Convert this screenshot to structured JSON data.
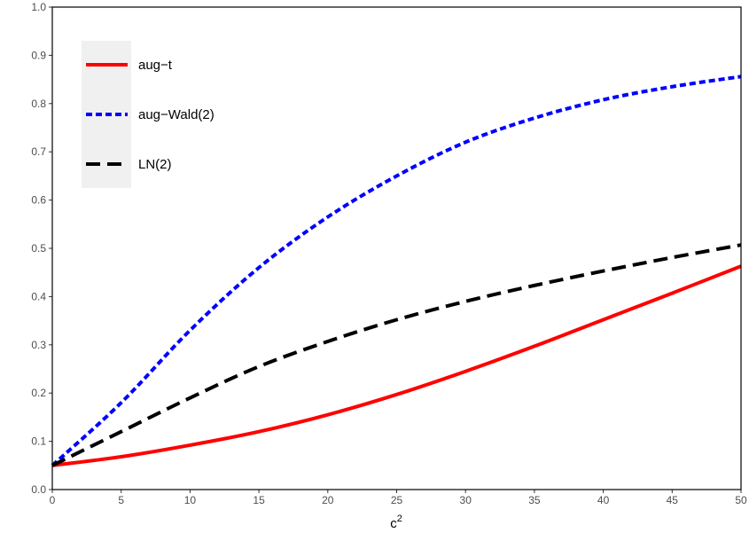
{
  "chart_data": {
    "type": "line",
    "title": "",
    "xlabel": "c",
    "xlabel_superscript": "2",
    "ylabel": "",
    "xlim": [
      0,
      50
    ],
    "ylim": [
      0,
      1
    ],
    "x_ticks": [
      0,
      5,
      10,
      15,
      20,
      25,
      30,
      35,
      40,
      45,
      50
    ],
    "y_ticks": [
      "0.0",
      "0.1",
      "0.2",
      "0.3",
      "0.4",
      "0.5",
      "0.6",
      "0.7",
      "0.8",
      "0.9",
      "1.0"
    ],
    "grid": false,
    "legend_position": "top-left",
    "x": [
      0,
      5,
      10,
      15,
      20,
      25,
      30,
      35,
      40,
      45,
      50
    ],
    "series": [
      {
        "name": "aug−t",
        "color": "#ff0000",
        "dash": "solid",
        "values": [
          0.05,
          0.068,
          0.092,
          0.12,
          0.155,
          0.197,
          0.245,
          0.297,
          0.352,
          0.407,
          0.463
        ]
      },
      {
        "name": "aug−Wald(2)",
        "color": "#0000ff",
        "dash": "dotted",
        "values": [
          0.05,
          0.18,
          0.33,
          0.46,
          0.565,
          0.65,
          0.72,
          0.77,
          0.808,
          0.835,
          0.856
        ]
      },
      {
        "name": "LN(2)",
        "color": "#000000",
        "dash": "dashed",
        "values": [
          0.05,
          0.12,
          0.19,
          0.255,
          0.307,
          0.352,
          0.39,
          0.423,
          0.453,
          0.481,
          0.507
        ]
      }
    ]
  }
}
